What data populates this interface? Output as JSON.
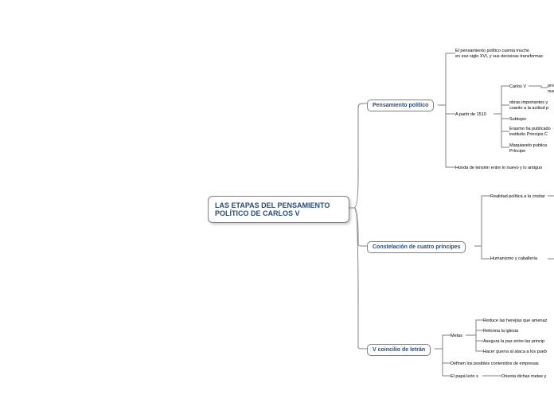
{
  "root": {
    "label": "LAS ETAPAS DEL PENSAMIENTO POLÍTICO DE CARLOS V"
  },
  "sections": {
    "pensamiento": {
      "label": "Pensamiento político",
      "children": {
        "c1": "El pensamiento político cuenta mucho\nen ese siglo XVI, y sus decisivas transformac",
        "apartir": {
          "label": "A partir de 1510",
          "children": {
            "carlos_v": "Carlos V",
            "carlos_v_sub": "pro\nnue",
            "obras": "obras importantes y\ncuanto a la actitud p",
            "subtopic": "Subtopic",
            "erasmo": "Erasmo ha publicado\ninstitutio Principis C",
            "maquiavelo": "Maquiavelo publica\nPríncipe"
          }
        },
        "honda": "Honda de tensión entre lo nuevo y lo antiguo"
      }
    },
    "constelacion": {
      "label": "Constelación de cuatro príncipes",
      "children": {
        "realidad": "Realidad política a la cristiar",
        "humanismo": "Humanismo y caballería"
      }
    },
    "concilio": {
      "label": "V coincilio de letrán",
      "children": {
        "metas": {
          "label": "Metas",
          "children": {
            "m1": "Reduce las herejías que amenaz",
            "m2": "Reforma la iglesia",
            "m3": "Asegura la paz entre las princip",
            "m4": "Hacer guerra al ataca a los pueb"
          }
        },
        "definen": "Definen los posibles contenidos de empresas",
        "papa": {
          "label": "El papá león x",
          "child": "Orienta dichas metas y"
        }
      }
    }
  },
  "colors": {
    "line": "#808080",
    "text_primary": "#2a4a7a",
    "text_leaf": "#000000",
    "bg": "#ffffff"
  }
}
